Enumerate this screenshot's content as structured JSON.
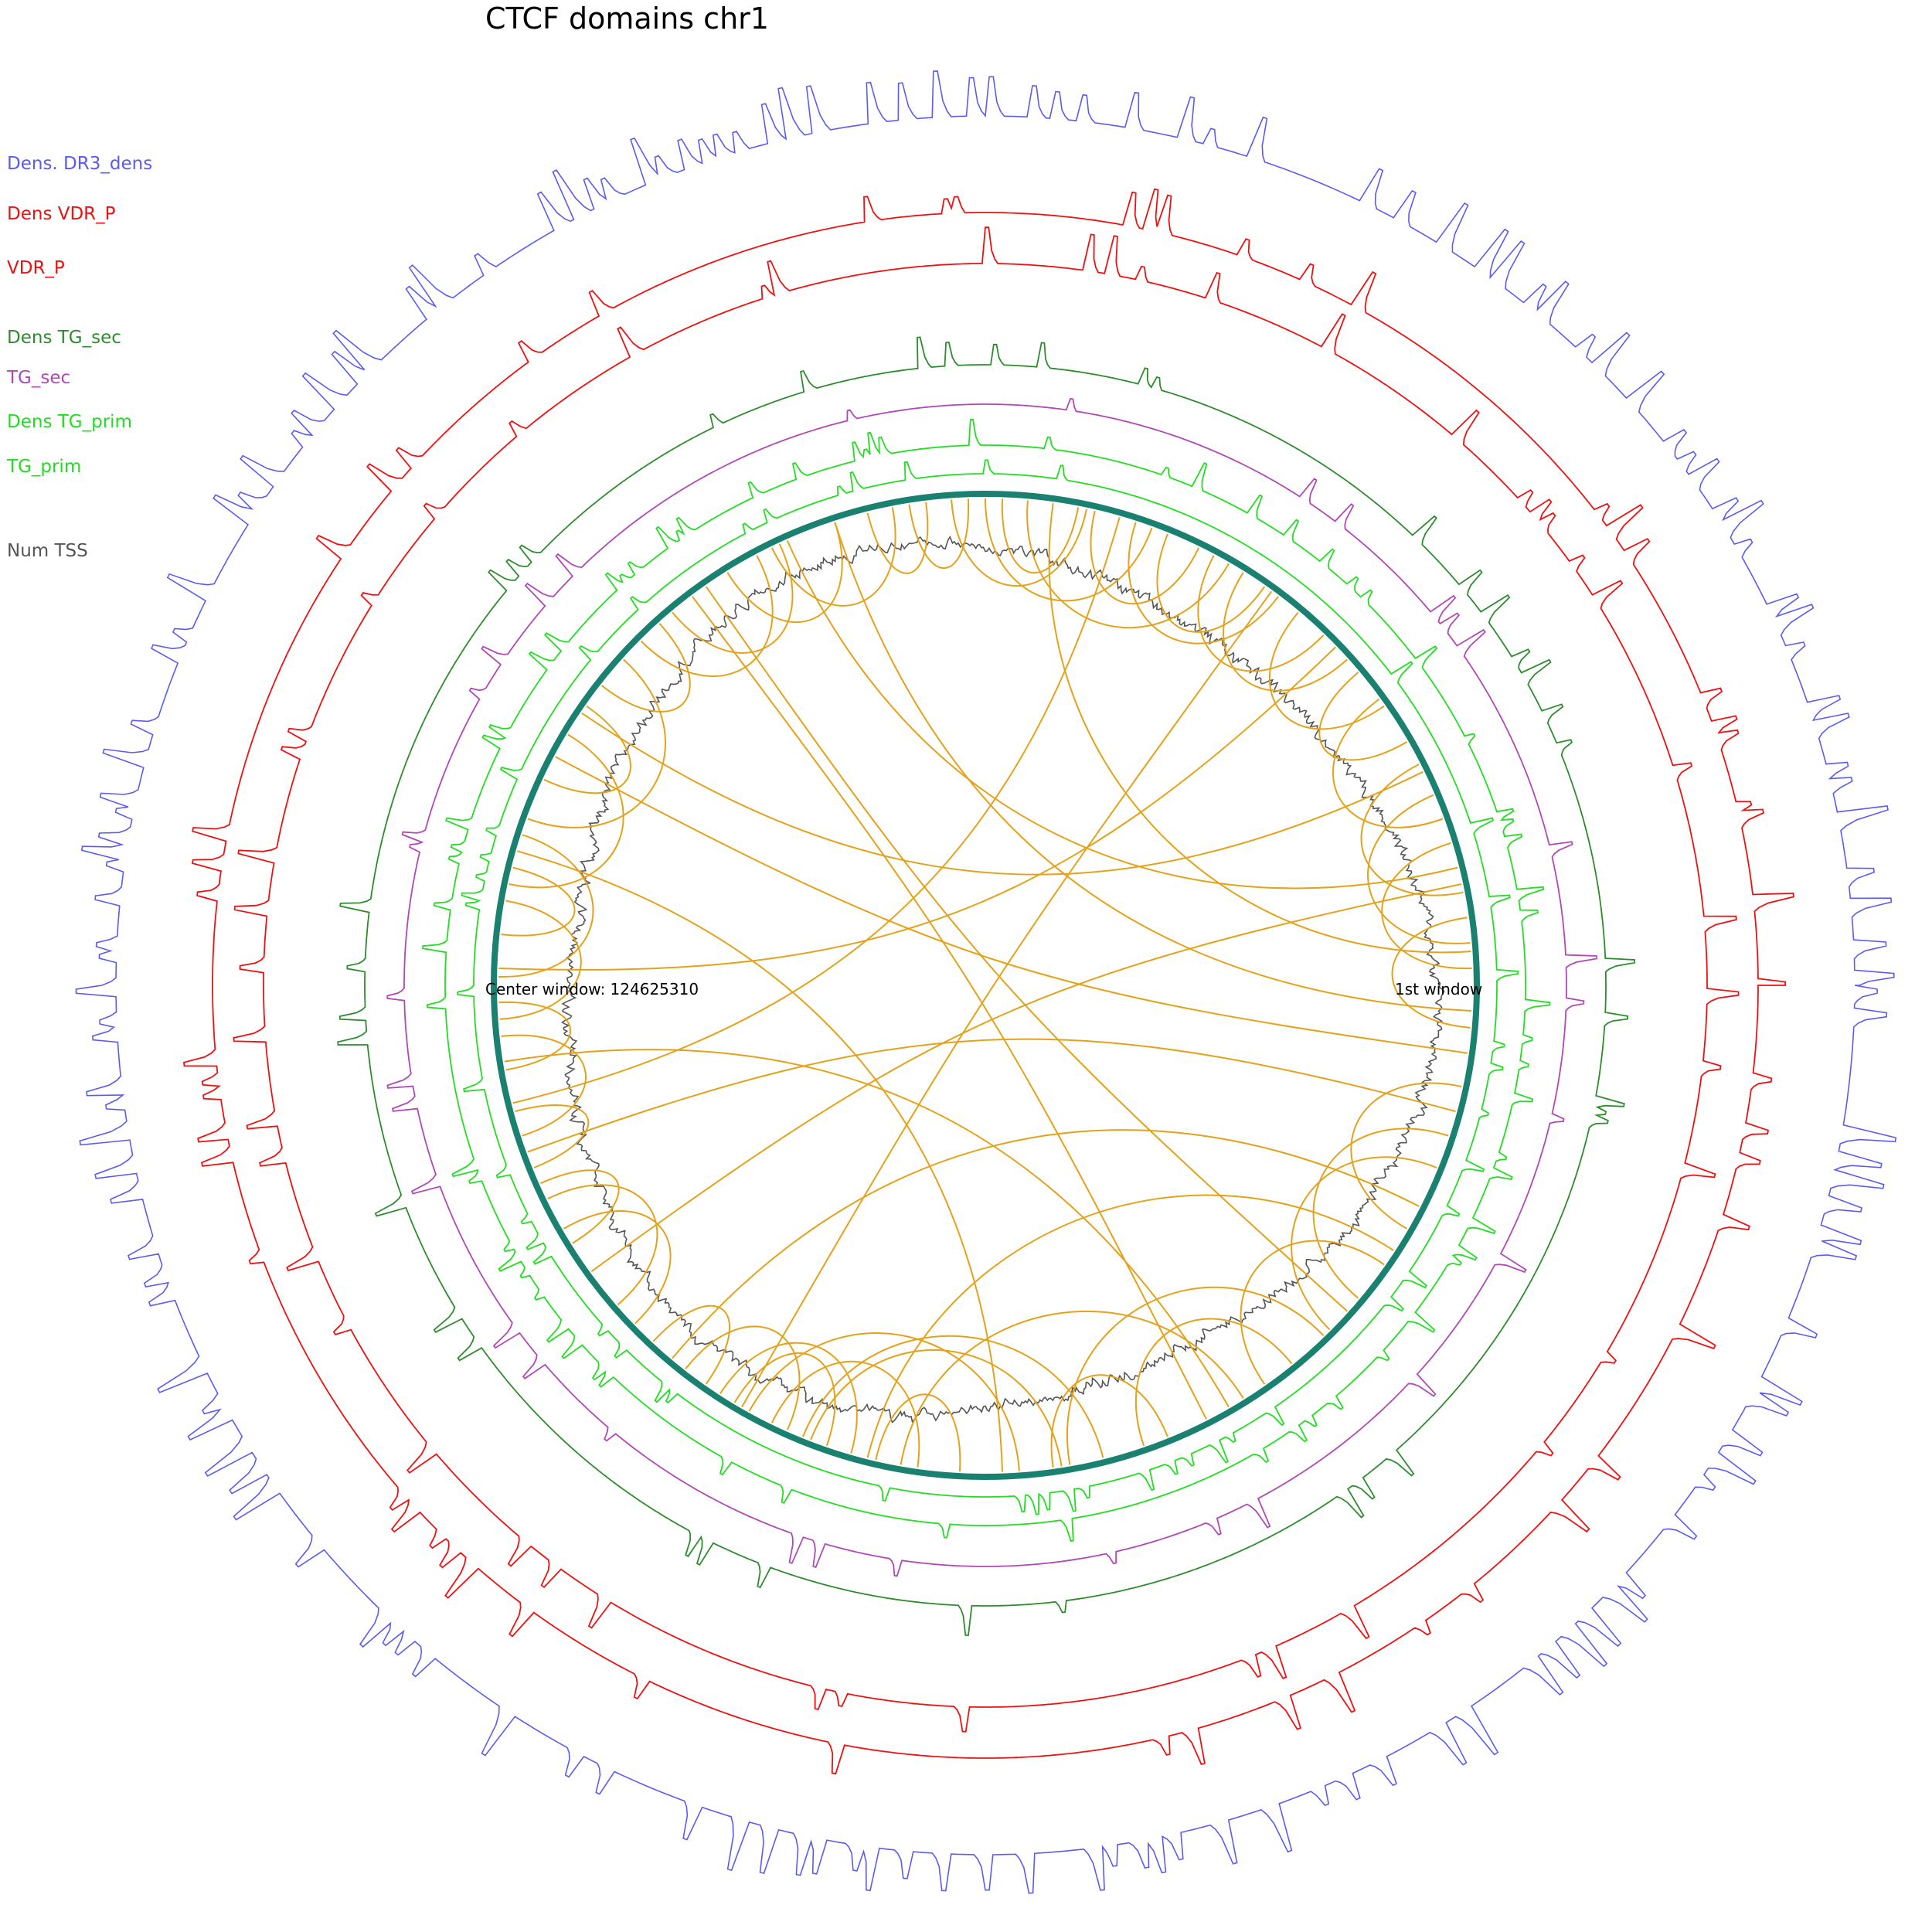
{
  "title": "CTCF domains chr1",
  "chart_data": {
    "type": "circos",
    "title": "CTCF domains chr1",
    "tracks": [
      {
        "name": "Dens. DR3_dens",
        "color": "#5b5bf0",
        "kind": "density"
      },
      {
        "name": "Dens VDR_P",
        "color": "#ee1111",
        "kind": "density"
      },
      {
        "name": "VDR_P",
        "color": "#ee1111",
        "kind": "peaks"
      },
      {
        "name": "Dens TG_sec",
        "color": "#2e8b2e",
        "kind": "density"
      },
      {
        "name": "TG_sec",
        "color": "#b048b5",
        "kind": "peaks"
      },
      {
        "name": "Dens TG_prim",
        "color": "#22dd22",
        "kind": "density"
      },
      {
        "name": "TG_prim",
        "color": "#22dd22",
        "kind": "peaks"
      },
      {
        "name": "Num TSS",
        "color": "#555555",
        "kind": "line"
      }
    ],
    "ideogram_color": "#1a8070",
    "link_color": "#e3a21a",
    "annotations": {
      "first_window": "1st window",
      "center_window": "Center window: 124625310"
    },
    "links": [
      [
        3,
        252
      ],
      [
        12,
        30
      ],
      [
        18,
        40
      ],
      [
        22,
        45
      ],
      [
        33,
        104
      ],
      [
        35,
        55
      ],
      [
        46,
        80
      ],
      [
        51,
        71
      ],
      [
        58,
        100
      ],
      [
        63,
        233
      ],
      [
        68,
        82
      ],
      [
        76,
        112
      ],
      [
        81,
        111
      ],
      [
        86,
        119
      ],
      [
        93,
        103
      ],
      [
        98,
        116
      ],
      [
        106,
        123
      ],
      [
        109,
        121
      ],
      [
        114,
        128
      ],
      [
        125,
        133
      ],
      [
        136,
        150
      ],
      [
        139,
        154
      ],
      [
        148,
        156
      ],
      [
        158,
        165
      ],
      [
        162,
        174
      ],
      [
        170,
        178
      ],
      [
        176,
        190
      ],
      [
        181,
        198
      ],
      [
        186,
        194
      ],
      [
        192,
        211
      ],
      [
        200,
        222
      ],
      [
        205,
        215
      ],
      [
        218,
        228
      ],
      [
        225,
        242
      ],
      [
        230,
        245
      ],
      [
        238,
        252
      ],
      [
        244,
        259
      ],
      [
        256,
        263
      ],
      [
        261,
        268
      ],
      [
        266,
        282
      ],
      [
        270,
        290
      ],
      [
        272,
        281
      ],
      [
        275,
        300
      ],
      [
        283,
        296
      ],
      [
        288,
        307
      ],
      [
        292,
        305
      ],
      [
        298,
        314
      ],
      [
        302,
        318
      ],
      [
        310,
        325
      ],
      [
        320,
        330
      ],
      [
        324,
        340
      ],
      [
        333,
        349
      ],
      [
        337,
        355
      ],
      [
        343,
        358
      ],
      [
        352,
        5
      ],
      [
        8,
        208
      ],
      [
        15,
        160
      ],
      [
        27,
        130
      ],
      [
        42,
        235
      ],
      [
        60,
        171
      ],
      [
        88,
        196
      ],
      [
        120,
        306
      ],
      [
        144,
        348
      ],
      [
        166,
        286
      ],
      [
        182,
        316
      ],
      [
        214,
        334
      ],
      [
        246,
        346
      ],
      [
        278,
        356
      ]
    ]
  }
}
